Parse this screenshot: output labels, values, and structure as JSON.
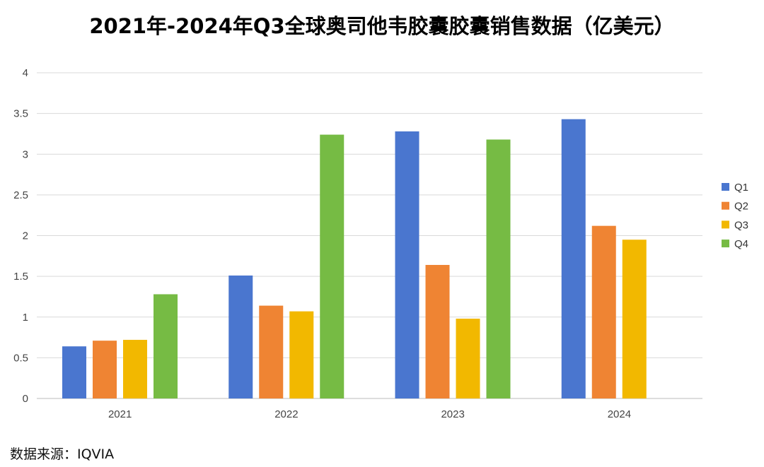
{
  "chart_data": {
    "type": "bar",
    "title": "2021年-2024年Q3全球奥司他韦胶囊胶囊销售数据（亿美元）",
    "xlabel": "",
    "ylabel": "",
    "categories": [
      "2021",
      "2022",
      "2023",
      "2024"
    ],
    "series": [
      {
        "name": "Q1",
        "color": "#4a76cf",
        "values": [
          0.64,
          1.51,
          3.28,
          3.43
        ]
      },
      {
        "name": "Q2",
        "color": "#ef8433",
        "values": [
          0.71,
          1.14,
          1.64,
          2.12
        ]
      },
      {
        "name": "Q3",
        "color": "#f2b800",
        "values": [
          0.72,
          1.07,
          0.98,
          1.95
        ]
      },
      {
        "name": "Q4",
        "color": "#76bb44",
        "values": [
          1.28,
          3.24,
          3.18,
          null
        ]
      }
    ],
    "ylim": [
      0,
      4
    ],
    "yticks": [
      "0",
      "0.5",
      "1",
      "1.5",
      "2",
      "2.5",
      "3",
      "3.5",
      "4"
    ],
    "grid": true,
    "legend": "right"
  },
  "source": "数据来源：IQVIA"
}
